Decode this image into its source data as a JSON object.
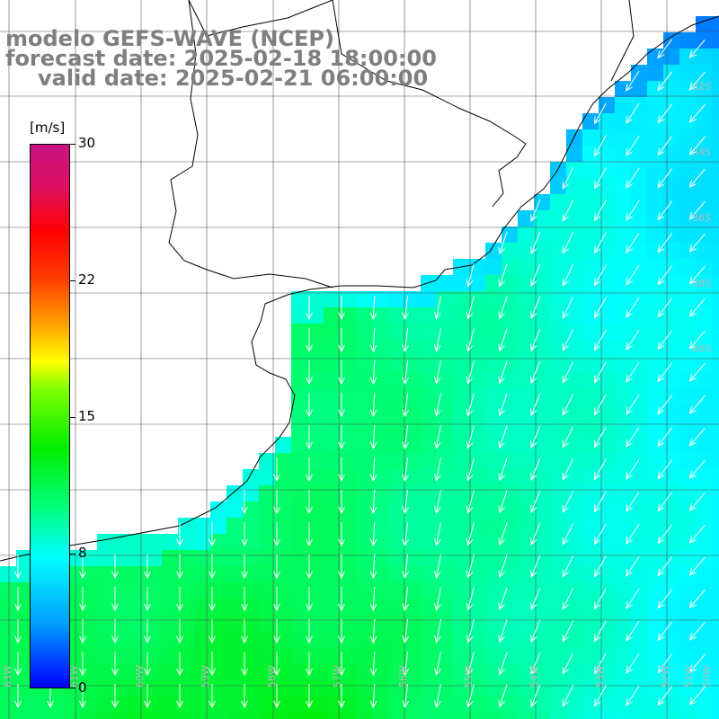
{
  "title": {
    "line1": "modelo GEFS-WAVE (NCEP)",
    "line2": "forecast date: 2025-02-18 18:00:00",
    "line3": "valid date: 2025-02-21 06:00:00"
  },
  "colorbar": {
    "unit": "[m/s]",
    "min": 0,
    "max": 30,
    "ticks": [
      "30",
      "22",
      "15",
      "8",
      "0"
    ]
  },
  "map": {
    "lat_labels": [
      "32S",
      "34S",
      "36S",
      "38S",
      "40S"
    ],
    "lon_labels": [
      "63W",
      "61W",
      "60W",
      "59W",
      "58W",
      "57W",
      "56W",
      "55W",
      "54W",
      "53W",
      "52W",
      "51W",
      "50W"
    ],
    "colors": {
      "land": "#ffffff",
      "coast": "#000000",
      "grid": "#555555",
      "arrow": "#ffffff"
    }
  }
}
